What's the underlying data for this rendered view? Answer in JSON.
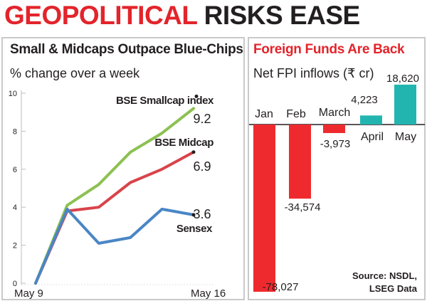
{
  "headline": {
    "part1": "GEOPOLITICAL",
    "part2": "RISKS EASE"
  },
  "left_panel": {
    "title": "Small & Midcaps Outpace Blue-Chips",
    "subtitle": "% change over a week"
  },
  "right_panel": {
    "title": "Foreign Funds Are Back",
    "subtitle": "Net FPI inflows (₹ cr)",
    "source_line1": "Source: NSDL,",
    "source_line2": "LSEG Data"
  },
  "colors": {
    "headline_red": "#e3242b",
    "text_dark": "#231f20",
    "smallcap": "#8cc152",
    "midcap": "#d9434b",
    "sensex": "#4a86c5",
    "negative_bar": "#ee2a2f",
    "positive_bar": "#22b5b0"
  },
  "chart_data": [
    {
      "type": "line",
      "title": "Small & Midcaps Outpace Blue-Chips",
      "subtitle": "% change over a week",
      "x_labels": [
        "May 9",
        "May 16"
      ],
      "ylim": [
        0,
        10
      ],
      "y_ticks": [
        "0",
        "2",
        "4",
        "6",
        "8",
        "10"
      ],
      "grid": false,
      "series": [
        {
          "name": "BSE Smallcap index",
          "end_label": "9.2",
          "color": "#8cc152",
          "values": [
            0,
            4.1,
            5.2,
            6.9,
            7.9,
            9.2
          ]
        },
        {
          "name": "BSE Midcap",
          "end_label": "6.9",
          "color": "#d9434b",
          "values": [
            0,
            3.8,
            4.0,
            5.3,
            6.0,
            6.9
          ]
        },
        {
          "name": "Sensex",
          "end_label": "3.6",
          "color": "#4a86c5",
          "values": [
            0,
            3.9,
            2.1,
            2.4,
            3.9,
            3.6
          ]
        }
      ]
    },
    {
      "type": "bar",
      "title": "Foreign Funds Are Back",
      "subtitle": "Net FPI inflows (₹ cr)",
      "categories": [
        "Jan",
        "Feb",
        "March",
        "April",
        "May"
      ],
      "values": [
        -78027,
        -34574,
        -3973,
        4223,
        18620
      ],
      "value_labels": [
        "-78,027",
        "-34,574",
        "-3,973",
        "4,223",
        "18,620"
      ]
    }
  ]
}
